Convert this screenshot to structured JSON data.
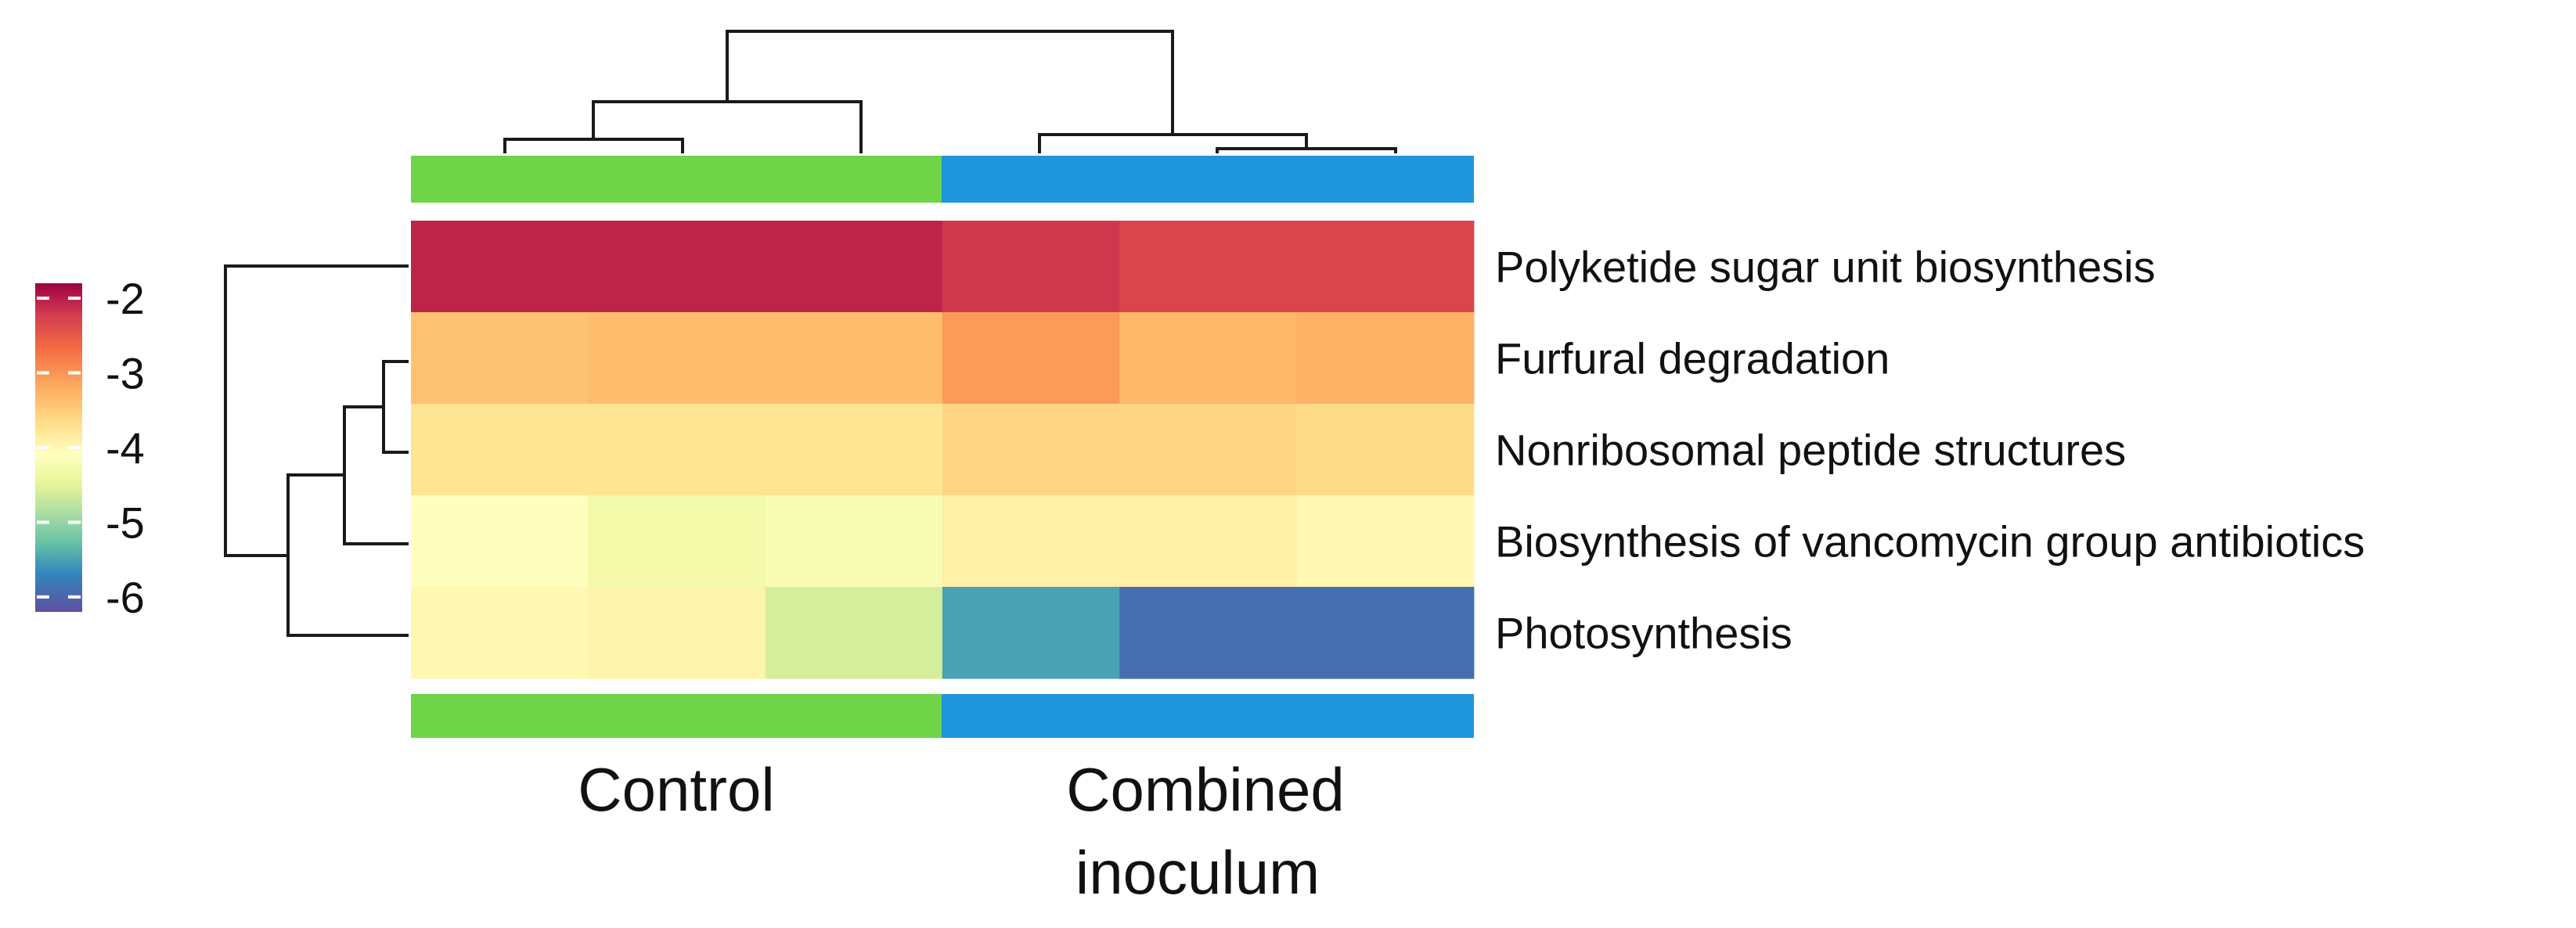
{
  "chart_data": {
    "type": "heatmap",
    "title": "",
    "xlabel": "",
    "ylabel": "",
    "columns": [
      "",
      "",
      "",
      "",
      "",
      ""
    ],
    "rows": [
      "Polyketide sugar unit biosynthesis",
      "Furfural degradation",
      "Nonribosomal peptide structures",
      "Biosynthesis of vancomycin group antibiotics",
      "Photosynthesis"
    ],
    "values": [
      [
        -2.05,
        -2.05,
        -2.05,
        -2.2,
        -2.3,
        -2.3
      ],
      [
        -3.4,
        -3.35,
        -3.35,
        -3.05,
        -3.3,
        -3.25
      ],
      [
        -3.75,
        -3.75,
        -3.75,
        -3.6,
        -3.6,
        -3.65
      ],
      [
        -4.1,
        -4.3,
        -4.2,
        -3.9,
        -3.9,
        -4.0
      ],
      [
        -4.0,
        -3.95,
        -4.6,
        -5.5,
        -5.9,
        -5.9
      ]
    ],
    "groups": [
      {
        "name": "Control",
        "columns": [
          0,
          1,
          2
        ],
        "color": "#6fd447"
      },
      {
        "name": "Combined inoculum",
        "columns": [
          3,
          4,
          5
        ],
        "color": "#1f96dc"
      }
    ],
    "colorbar": {
      "ticks": [
        -2,
        -3,
        -4,
        -5,
        -6
      ],
      "tick_labels": [
        "-2",
        "-3",
        "-4",
        "-5",
        "-6"
      ],
      "range": [
        -6.2,
        -1.8
      ],
      "palette": "Spectral"
    },
    "legend_position": "left",
    "column_dendrogram": true,
    "row_dendrogram": true
  },
  "group_labels": {
    "control": "Control",
    "combined_line1": "Combined",
    "combined_line2": "inoculum"
  }
}
